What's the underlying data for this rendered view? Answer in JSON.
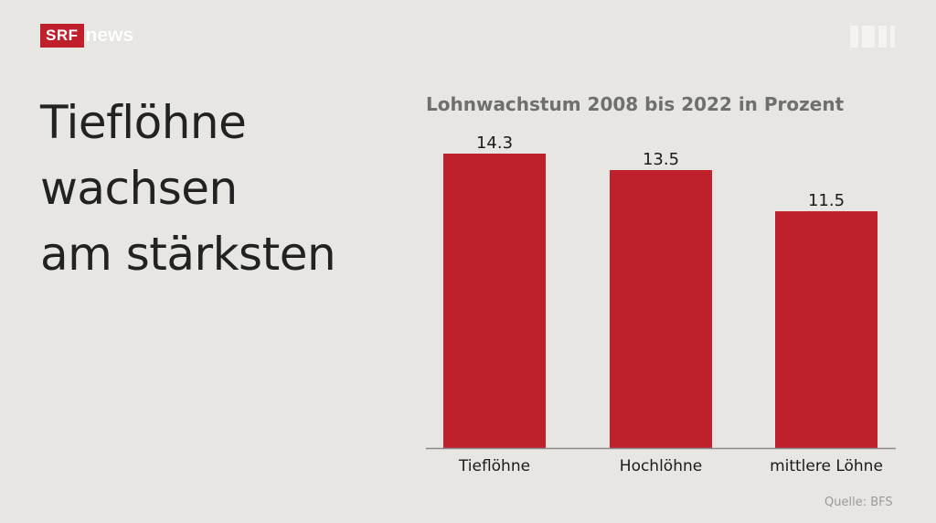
{
  "branding": {
    "logo_srf": "SRF",
    "logo_news": "news"
  },
  "headline": {
    "lines": [
      "Tieflöhne",
      "wachsen",
      "am stärksten"
    ]
  },
  "source": "Quelle: BFS",
  "colors": {
    "background": "#e8e6e2",
    "bar": "#c0202c",
    "headline": "#222222",
    "chart_title": "#6f6f6f"
  },
  "chart_data": {
    "type": "bar",
    "title": "Lohnwachstum 2008 bis 2022 in Prozent",
    "categories": [
      "Tieflöhne",
      "Hochlöhne",
      "mittlere Löhne"
    ],
    "values": [
      14.3,
      13.5,
      11.5
    ],
    "value_labels": [
      "14.3",
      "13.5",
      "11.5"
    ],
    "xlabel": "",
    "ylabel": "",
    "ylim": [
      0,
      14.3
    ],
    "grid": false,
    "legend": "none"
  }
}
